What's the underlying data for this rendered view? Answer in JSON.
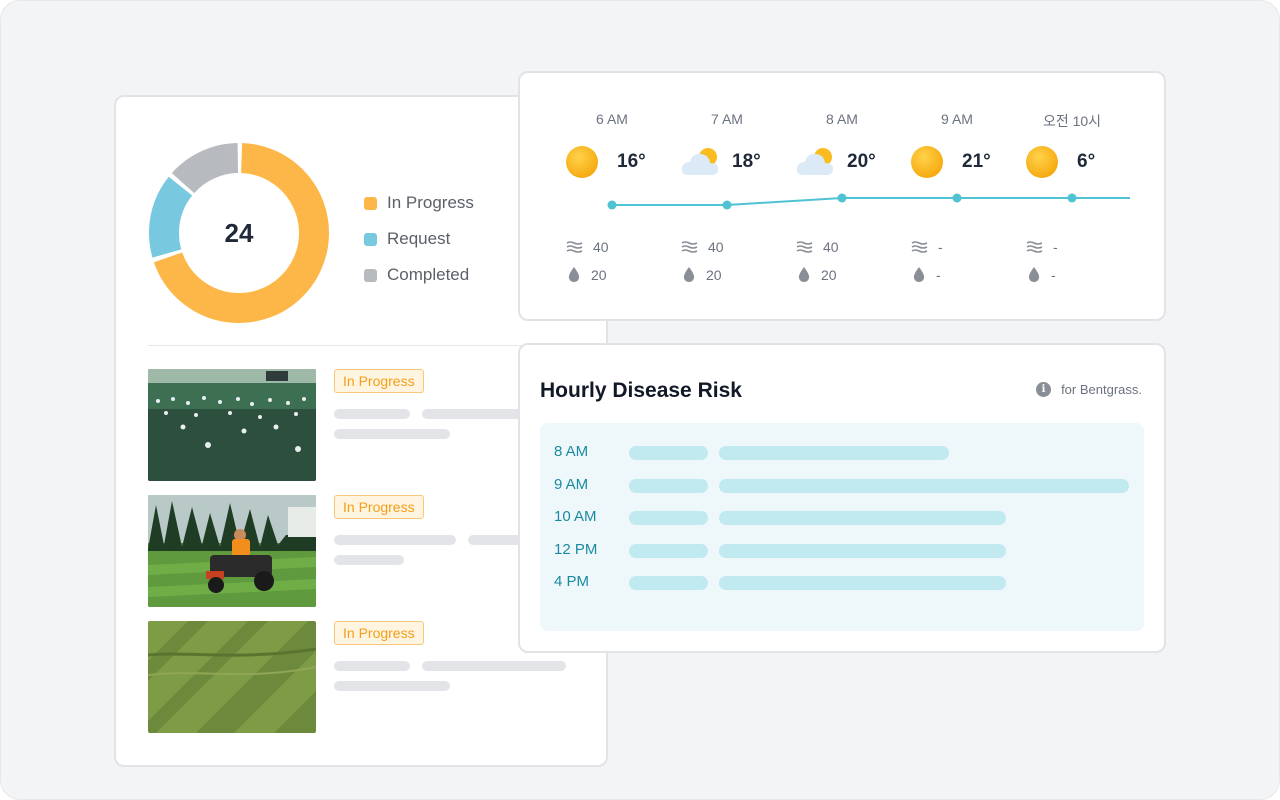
{
  "donut": {
    "total": "24",
    "segments": [
      {
        "name": "In Progress",
        "value": 0.7,
        "color": "#fdb749"
      },
      {
        "name": "Request",
        "value": 0.16,
        "color": "#78c9e0"
      },
      {
        "name": "Completed",
        "value": 0.14,
        "color": "#b7bbc0"
      }
    ]
  },
  "legend": {
    "items": [
      {
        "label": "In Progress",
        "color": "#fdb749"
      },
      {
        "label": "Request",
        "color": "#78c9e0"
      },
      {
        "label": "Completed",
        "color": "#b7bbc0"
      }
    ]
  },
  "tasks": [
    {
      "status": "In Progress",
      "photo": "golf-course-with-balls"
    },
    {
      "status": "In Progress",
      "photo": "lawn-mower-rider"
    },
    {
      "status": "In Progress",
      "photo": "striped-lawn"
    }
  ],
  "weather": {
    "hours": [
      {
        "time": "6 AM",
        "icon": "sun-icon",
        "temp": "16°",
        "wind": "40",
        "rain": "20",
        "level": 0
      },
      {
        "time": "7 AM",
        "icon": "partly-cloudy-icon",
        "temp": "18°",
        "wind": "40",
        "rain": "20",
        "level": 0
      },
      {
        "time": "8 AM",
        "icon": "partly-cloudy-icon",
        "temp": "20°",
        "wind": "40",
        "rain": "20",
        "level": 1
      },
      {
        "time": "9 AM",
        "icon": "sun-icon",
        "temp": "21°",
        "wind": "-",
        "rain": "-",
        "level": 1
      },
      {
        "time": "오전 10시",
        "icon": "sun-icon",
        "temp": "6°",
        "wind": "-",
        "rain": "-",
        "level": 1
      }
    ],
    "line_color": "#4fc3d3"
  },
  "disease": {
    "title": "Hourly Disease Risk",
    "note": "for Bentgrass.",
    "rows": [
      {
        "time": "8 AM",
        "risk": 0.56
      },
      {
        "time": "9 AM",
        "risk": 1.0
      },
      {
        "time": "10 AM",
        "risk": 0.7
      },
      {
        "time": "12 PM",
        "risk": 0.7
      },
      {
        "time": "4 PM",
        "risk": 0.7
      }
    ]
  }
}
